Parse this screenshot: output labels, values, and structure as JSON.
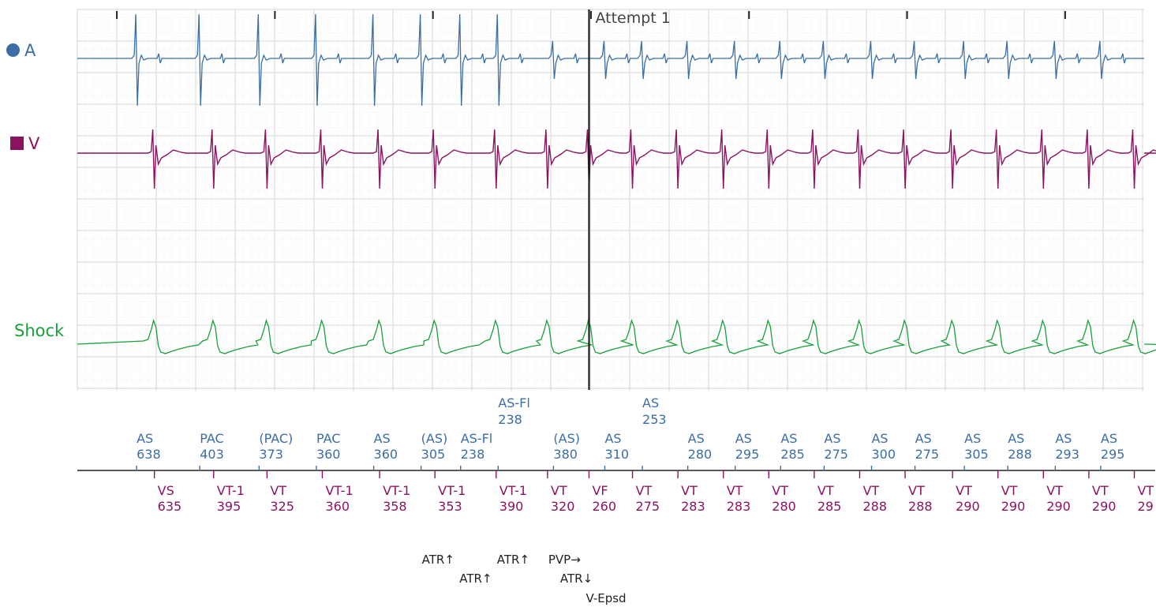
{
  "channels": {
    "a": {
      "label": "A",
      "symbol": "circle",
      "color": "#3a6ea5"
    },
    "v": {
      "label": "V",
      "symbol": "square",
      "color": "#8c1361"
    },
    "shock": {
      "label": "Shock",
      "color": "#17a03a"
    }
  },
  "colors": {
    "atrial": "#3a6ea5",
    "ventricular": "#8c1361",
    "shock": "#17a03a",
    "marker": "#222222"
  },
  "attempt_label": "Attempt 1",
  "chart_data": {
    "type": "line",
    "x_unit": "ms",
    "x_range": [
      0,
      5400
    ],
    "grid": true,
    "attempt_marker": {
      "time_ms": 2590,
      "label": "Attempt 1"
    },
    "atrial_events": [
      {
        "t": 300,
        "label": "AS",
        "interval": "638"
      },
      {
        "t": 620,
        "label": "PAC",
        "interval": "403"
      },
      {
        "t": 920,
        "label": "(PAC)",
        "interval": "373"
      },
      {
        "t": 1210,
        "label": "PAC",
        "interval": "360"
      },
      {
        "t": 1500,
        "label": "AS",
        "interval": "360"
      },
      {
        "t": 1740,
        "label": "(AS)",
        "interval": "305"
      },
      {
        "t": 1940,
        "label": "AS-Fl",
        "interval": "238"
      },
      {
        "t": 2130,
        "label": "AS-Fl",
        "interval": "238"
      },
      {
        "t": 2410,
        "label": "(AS)",
        "interval": "380"
      },
      {
        "t": 2670,
        "label": "AS",
        "interval": "310"
      },
      {
        "t": 2860,
        "label": "AS",
        "interval": "253"
      },
      {
        "t": 3090,
        "label": "AS",
        "interval": "280"
      },
      {
        "t": 3330,
        "label": "AS",
        "interval": "295"
      },
      {
        "t": 3560,
        "label": "AS",
        "interval": "285"
      },
      {
        "t": 3780,
        "label": "AS",
        "interval": "275"
      },
      {
        "t": 4020,
        "label": "AS",
        "interval": "300"
      },
      {
        "t": 4240,
        "label": "AS",
        "interval": "275"
      },
      {
        "t": 4490,
        "label": "AS",
        "interval": "305"
      },
      {
        "t": 4710,
        "label": "AS",
        "interval": "288"
      },
      {
        "t": 4950,
        "label": "AS",
        "interval": "293"
      },
      {
        "t": 5180,
        "label": "AS",
        "interval": "295"
      }
    ],
    "ventricular_events": [
      {
        "t": 390,
        "label": "VS",
        "interval": "635"
      },
      {
        "t": 690,
        "label": "VT-1",
        "interval": "395"
      },
      {
        "t": 960,
        "label": "VT",
        "interval": "325"
      },
      {
        "t": 1240,
        "label": "VT-1",
        "interval": "360"
      },
      {
        "t": 1530,
        "label": "VT-1",
        "interval": "358"
      },
      {
        "t": 1810,
        "label": "VT-1",
        "interval": "353"
      },
      {
        "t": 2120,
        "label": "VT-1",
        "interval": "390"
      },
      {
        "t": 2380,
        "label": "VT",
        "interval": "320"
      },
      {
        "t": 2590,
        "label": "VF",
        "interval": "260"
      },
      {
        "t": 2810,
        "label": "VT",
        "interval": "275"
      },
      {
        "t": 3040,
        "label": "VT",
        "interval": "283"
      },
      {
        "t": 3270,
        "label": "VT",
        "interval": "283"
      },
      {
        "t": 3500,
        "label": "VT",
        "interval": "280"
      },
      {
        "t": 3730,
        "label": "VT",
        "interval": "285"
      },
      {
        "t": 3960,
        "label": "VT",
        "interval": "288"
      },
      {
        "t": 4190,
        "label": "VT",
        "interval": "288"
      },
      {
        "t": 4430,
        "label": "VT",
        "interval": "290"
      },
      {
        "t": 4660,
        "label": "VT",
        "interval": "290"
      },
      {
        "t": 4890,
        "label": "VT",
        "interval": "290"
      },
      {
        "t": 5120,
        "label": "VT",
        "interval": "290"
      },
      {
        "t": 5350,
        "label": "VT",
        "interval": "29"
      }
    ],
    "device_markers": [
      {
        "t": 1760,
        "row": 0,
        "label": "ATR↑"
      },
      {
        "t": 2140,
        "row": 0,
        "label": "ATR↑"
      },
      {
        "t": 2400,
        "row": 0,
        "label": "PVP→"
      },
      {
        "t": 1950,
        "row": 1,
        "label": "ATR↑"
      },
      {
        "t": 2460,
        "row": 1,
        "label": "ATR↓"
      },
      {
        "t": 2590,
        "row": 2,
        "label": "V-Epsd"
      }
    ],
    "shock_waveform": "continuous R-wave shaped deflection synchronized to ventricular events"
  }
}
